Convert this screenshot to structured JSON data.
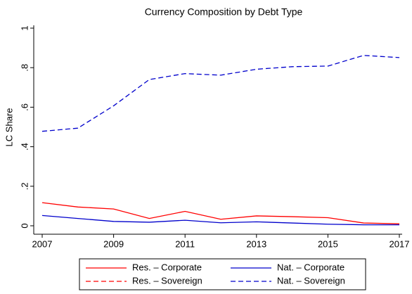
{
  "chart_data": {
    "type": "line",
    "title": "Currency Composition by Debt Type",
    "y_label": "LC Share",
    "x": [
      2007,
      2008,
      2009,
      2010,
      2011,
      2012,
      2013,
      2014,
      2015,
      2016,
      2017
    ],
    "xlim": [
      2007,
      2017
    ],
    "xticks": [
      2007,
      2009,
      2011,
      2013,
      2015,
      2017
    ],
    "ylim": [
      0,
      1
    ],
    "yticks": [
      0,
      {
        "value": 0.2,
        "label": ".2"
      },
      {
        "value": 0.4,
        "label": ".4"
      },
      {
        "value": 0.6,
        "label": ".6"
      },
      {
        "value": 0.8,
        "label": ".8"
      },
      1
    ],
    "grid": false,
    "legend_position": "bottom",
    "series": [
      {
        "name": "Res. – Corporate",
        "color": "#ff0000",
        "dash": "solid",
        "values": [
          0.117,
          0.095,
          0.085,
          0.037,
          0.073,
          0.033,
          0.05,
          0.046,
          0.041,
          0.014,
          0.01
        ]
      },
      {
        "name": "Nat. – Corporate",
        "color": "#0000cc",
        "dash": "solid",
        "values": [
          0.052,
          0.037,
          0.022,
          0.018,
          0.028,
          0.015,
          0.02,
          0.014,
          0.008,
          0.005,
          0.005
        ]
      },
      {
        "name": "Res. – Sovereign",
        "color": "#ff0000",
        "dash": "dashed",
        "values": [
          null,
          null,
          null,
          null,
          null,
          null,
          null,
          null,
          null,
          null,
          null
        ]
      },
      {
        "name": "Nat. – Sovereign",
        "color": "#0000cc",
        "dash": "dashed",
        "values": [
          0.478,
          0.494,
          0.607,
          0.74,
          0.77,
          0.762,
          0.792,
          0.805,
          0.808,
          0.862,
          0.851
        ]
      }
    ]
  }
}
